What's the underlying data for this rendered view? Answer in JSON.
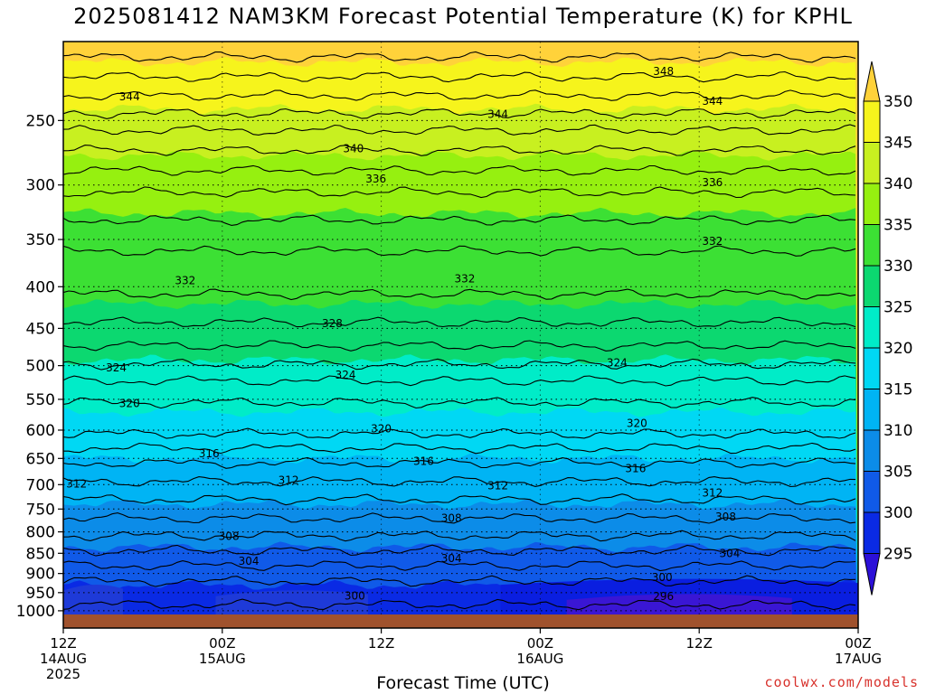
{
  "chart_data": {
    "type": "heatmap",
    "title": "2025081412 NAM3KM Forecast Potential Temperature (K) for KPHL",
    "xlabel": "Forecast Time (UTC)",
    "ylabel": "",
    "y_scale": "log",
    "y_reversed": true,
    "y_ticks": [
      250,
      300,
      350,
      400,
      450,
      500,
      550,
      600,
      650,
      700,
      750,
      800,
      850,
      900,
      950,
      1000
    ],
    "y_tick_labels": [
      "250",
      "300",
      "350",
      "400",
      "450",
      "500",
      "550",
      "600",
      "650",
      "700",
      "750",
      "800",
      "850",
      "900",
      "950",
      "1000"
    ],
    "x_range_hours": [
      0,
      60
    ],
    "x_ticks": [
      {
        "hour": 0,
        "labels": [
          "12Z",
          "14AUG",
          "2025"
        ]
      },
      {
        "hour": 12,
        "labels": [
          "00Z",
          "15AUG"
        ]
      },
      {
        "hour": 24,
        "labels": [
          "12Z"
        ]
      },
      {
        "hour": 36,
        "labels": [
          "00Z",
          "16AUG"
        ]
      },
      {
        "hour": 48,
        "labels": [
          "12Z"
        ]
      },
      {
        "hour": 60,
        "labels": [
          "00Z",
          "17AUG"
        ]
      }
    ],
    "colorbar": {
      "levels": [
        350,
        345,
        340,
        335,
        330,
        325,
        320,
        315,
        310,
        305,
        300,
        295
      ],
      "colors": [
        "#ffd23a",
        "#f6f41c",
        "#c8f020",
        "#96f010",
        "#3ce034",
        "#0cd870",
        "#00ecc8",
        "#00d8f4",
        "#00b4f4",
        "#0c8ce8",
        "#105ae8",
        "#0a2ae4",
        "#2c10d8"
      ]
    },
    "contour_labels": [
      {
        "value": "348",
        "hour": 45.3,
        "p": 217
      },
      {
        "value": "344",
        "hour": 5.0,
        "p": 233
      },
      {
        "value": "344",
        "hour": 32.8,
        "p": 245
      },
      {
        "value": "344",
        "hour": 49.0,
        "p": 236
      },
      {
        "value": "340",
        "hour": 21.9,
        "p": 270
      },
      {
        "value": "336",
        "hour": 23.6,
        "p": 294
      },
      {
        "value": "336",
        "hour": 49.0,
        "p": 297
      },
      {
        "value": "332",
        "hour": 49.0,
        "p": 351
      },
      {
        "value": "332",
        "hour": 9.2,
        "p": 392
      },
      {
        "value": "332",
        "hour": 30.3,
        "p": 390
      },
      {
        "value": "328",
        "hour": 20.3,
        "p": 443
      },
      {
        "value": "324",
        "hour": 4.0,
        "p": 502
      },
      {
        "value": "324",
        "hour": 21.3,
        "p": 512
      },
      {
        "value": "324",
        "hour": 41.8,
        "p": 495
      },
      {
        "value": "320",
        "hour": 5.0,
        "p": 555
      },
      {
        "value": "320",
        "hour": 24.0,
        "p": 596
      },
      {
        "value": "320",
        "hour": 43.3,
        "p": 587
      },
      {
        "value": "316",
        "hour": 11.0,
        "p": 640
      },
      {
        "value": "316",
        "hour": 27.2,
        "p": 654
      },
      {
        "value": "316",
        "hour": 43.2,
        "p": 667
      },
      {
        "value": "312",
        "hour": 1.0,
        "p": 697
      },
      {
        "value": "312",
        "hour": 17.0,
        "p": 690
      },
      {
        "value": "312",
        "hour": 32.8,
        "p": 700
      },
      {
        "value": "312",
        "hour": 49.0,
        "p": 715
      },
      {
        "value": "308",
        "hour": 29.3,
        "p": 768
      },
      {
        "value": "308",
        "hour": 50.0,
        "p": 765
      },
      {
        "value": "308",
        "hour": 12.5,
        "p": 808
      },
      {
        "value": "304",
        "hour": 14.0,
        "p": 867
      },
      {
        "value": "304",
        "hour": 29.3,
        "p": 860
      },
      {
        "value": "304",
        "hour": 50.3,
        "p": 848
      },
      {
        "value": "300",
        "hour": 45.2,
        "p": 908
      },
      {
        "value": "300",
        "hour": 22.0,
        "p": 957
      },
      {
        "value": "296",
        "hour": 45.3,
        "p": 958
      }
    ],
    "colors": {
      "ground": "#a0522d",
      "frame": "#000000",
      "credit": "#d8322c"
    }
  },
  "credit": "coolwx.com/models"
}
